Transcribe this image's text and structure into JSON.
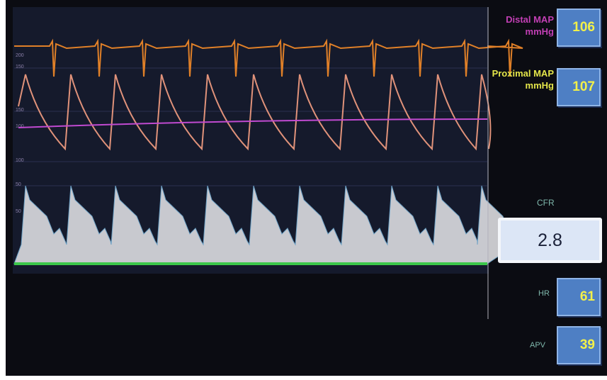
{
  "panels": {
    "distal": {
      "label": "Distal MAP",
      "unit": "mmHg",
      "value": "106"
    },
    "proximal": {
      "label": "Proximal MAP",
      "unit": "mmHg",
      "value": "107"
    },
    "cfr": {
      "label": "CFR",
      "value": "2.8"
    },
    "hr": {
      "label": "HR",
      "value": "61"
    },
    "apv": {
      "label": "APV",
      "value": "39"
    }
  },
  "scale_labels": [
    "200",
    "150",
    "150",
    "100",
    "100",
    "50",
    "50"
  ]
}
